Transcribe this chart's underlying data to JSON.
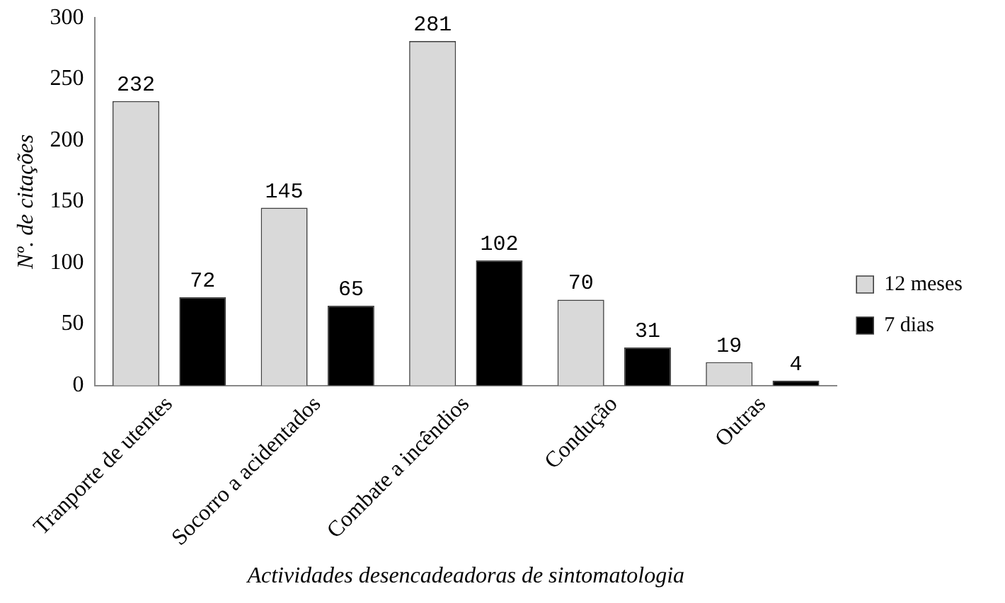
{
  "chart_data": {
    "type": "bar",
    "categories": [
      "Tranporte de utentes",
      "Socorro a acidentados",
      "Combate a incêndios",
      "Condução",
      "Outras"
    ],
    "series": [
      {
        "name": "12 meses",
        "color": "#d9d9d9",
        "values": [
          232,
          145,
          281,
          70,
          19
        ]
      },
      {
        "name": "7 dias",
        "color": "#000000",
        "values": [
          72,
          65,
          102,
          31,
          4
        ]
      }
    ],
    "xlabel": "Actividades desencadeadoras de sintomatologia",
    "ylabel": "Nº. de citações",
    "ylim": [
      0,
      300
    ],
    "yticks": [
      0,
      50,
      100,
      150,
      200,
      250,
      300
    ],
    "grid": false,
    "legend": "right",
    "data_labels": true
  }
}
